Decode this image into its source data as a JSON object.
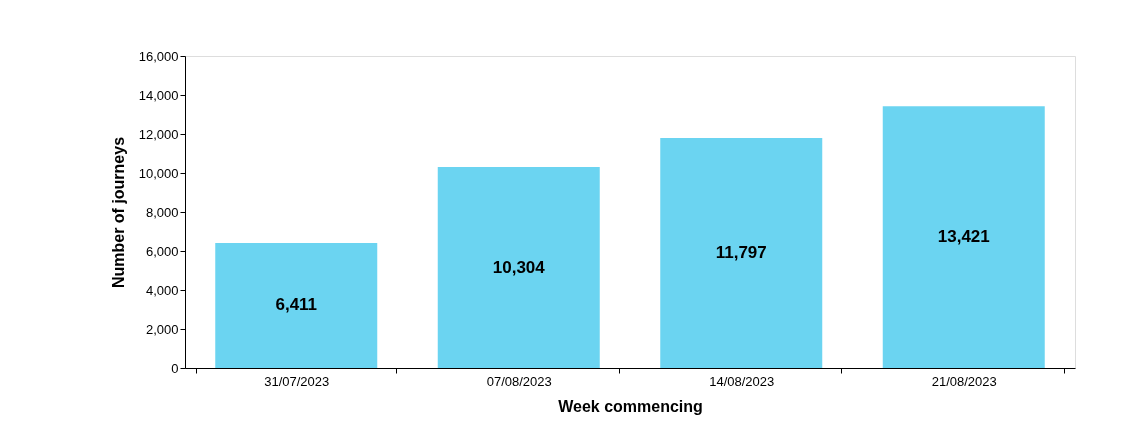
{
  "chart_data": {
    "type": "bar",
    "xlabel": "Week commencing",
    "ylabel": "Number of journeys",
    "categories": [
      "31/07/2023",
      "07/08/2023",
      "14/08/2023",
      "21/08/2023"
    ],
    "values": [
      6411,
      10304,
      11797,
      13421
    ],
    "color": "#6bd4f1",
    "ylim": [
      0,
      16000
    ],
    "yticks": [
      {
        "value": 0,
        "label": "0"
      },
      {
        "value": 2000,
        "label": "2,000"
      },
      {
        "value": 4000,
        "label": "4,000"
      },
      {
        "value": 6000,
        "label": "6,000"
      },
      {
        "value": 8000,
        "label": "8,000"
      },
      {
        "value": 10000,
        "label": "10,000"
      },
      {
        "value": 12000,
        "label": "12,000"
      },
      {
        "value": 14000,
        "label": "14,000"
      },
      {
        "value": 16000,
        "label": "16,000"
      }
    ],
    "value_labels": [
      "6,411",
      "10,304",
      "11,797",
      "13,421"
    ],
    "grid": false
  }
}
